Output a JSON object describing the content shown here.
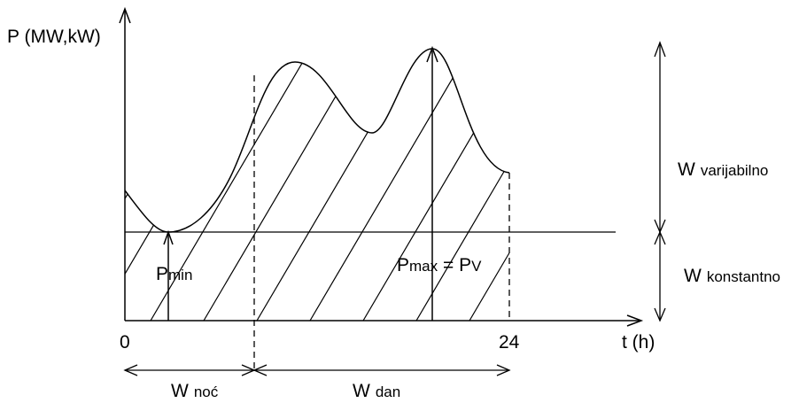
{
  "axes": {
    "y_label": "P (MW,kW)",
    "x_label": "t (h)",
    "x_origin": "0",
    "x_end": "24"
  },
  "annotations": {
    "pmin": {
      "base": "P",
      "sub": "min"
    },
    "pmax": {
      "base": "P",
      "sub1": "max",
      "eq": " = P",
      "sub2": "V"
    }
  },
  "regions": {
    "w_varijabilno": {
      "base": "W",
      "sub": "varijabilno"
    },
    "w_konstantno": {
      "base": "W",
      "sub": "konstantno"
    },
    "w_noc": {
      "base": "W",
      "sub": "noć"
    },
    "w_dan": {
      "base": "W",
      "sub": "dan"
    }
  }
}
